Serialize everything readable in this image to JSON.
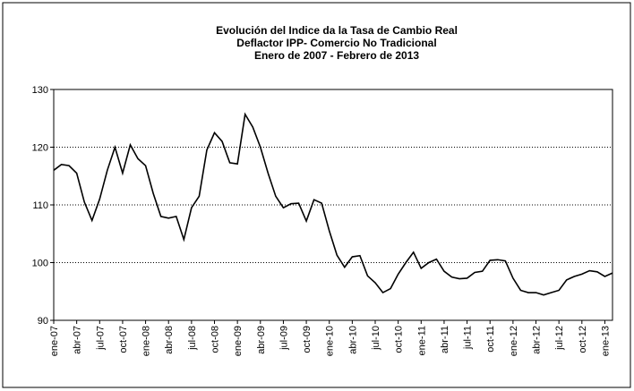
{
  "chart_data": {
    "type": "line",
    "title": [
      "Evolución del Indice da la Tasa de Cambio Real",
      "Deflactor IPP- Comercio No Tradicional",
      "Enero de 2007 - Febrero de 2013"
    ],
    "categories": [
      "ene-07",
      null,
      null,
      "abr-07",
      null,
      null,
      "jul-07",
      null,
      null,
      "oct-07",
      null,
      null,
      "ene-08",
      null,
      null,
      "abr-08",
      null,
      null,
      "jul-08",
      null,
      null,
      "oct-08",
      null,
      null,
      "ene-09",
      null,
      null,
      "abr-09",
      null,
      null,
      "jul-09",
      null,
      null,
      "oct-09",
      null,
      null,
      "ene-10",
      null,
      null,
      "abr-10",
      null,
      null,
      "jul-10",
      null,
      null,
      "oct-10",
      null,
      null,
      "ene-11",
      null,
      null,
      "abr-11",
      null,
      null,
      "jul-11",
      null,
      null,
      "oct-11",
      null,
      null,
      "ene-12",
      null,
      null,
      "abr-12",
      null,
      null,
      "jul-12",
      null,
      null,
      "oct-12",
      null,
      null,
      "ene-13",
      null
    ],
    "series": [
      {
        "color": "#000000",
        "values": [
          116,
          117,
          116.8,
          115.5,
          110.5,
          107.3,
          111,
          116,
          120,
          115.5,
          120.4,
          118,
          116.8,
          112,
          108,
          107.7,
          108,
          104,
          109.5,
          111.5,
          119.5,
          122.5,
          121,
          117.3,
          117.1,
          125.7,
          123.5,
          120,
          115.5,
          111.5,
          109.5,
          110.2,
          110.3,
          107.2,
          110.9,
          110.3,
          105.5,
          101.3,
          99.2,
          101,
          101.2,
          97.7,
          96.5,
          94.8,
          95.5,
          98,
          100,
          101.8,
          99,
          100,
          100.6,
          98.5,
          97.5,
          97.2,
          97.3,
          98.3,
          98.5,
          100.4,
          100.5,
          100.3,
          97.3,
          95.2,
          94.8,
          94.8,
          94.4,
          94.8,
          95.2,
          97,
          97.6,
          98,
          98.6,
          98.4,
          97.6,
          98.2
        ]
      }
    ],
    "ylim": [
      90,
      130
    ],
    "yticks": [
      90,
      100,
      110,
      120,
      130
    ],
    "grid": true
  }
}
